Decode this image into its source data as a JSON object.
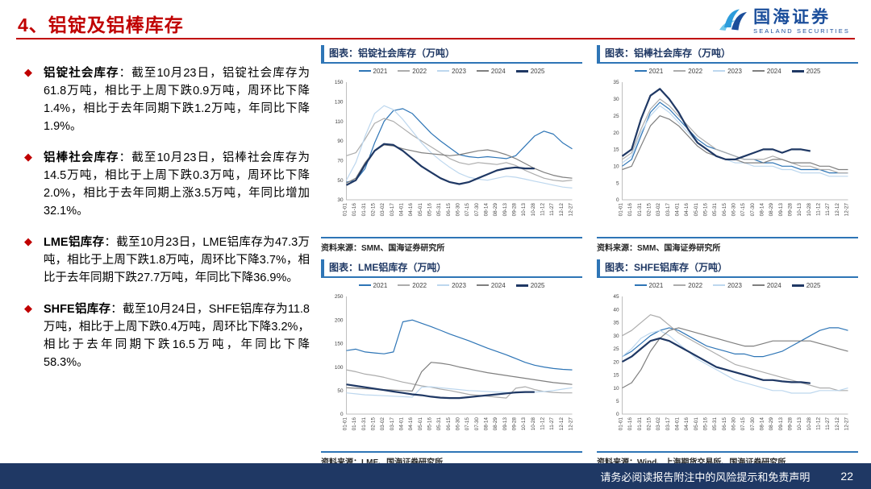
{
  "header": {
    "title": "4、铝锭及铝棒库存",
    "logo_cn": "国海证券",
    "logo_en": "SEALAND SECURITIES"
  },
  "bullets": [
    {
      "term": "铝锭社会库存",
      "text": "：截至10月23日，铝锭社会库存为61.8万吨，相比于上周下跌0.9万吨，周环比下降1.4%，相比于去年同期下跌1.2万吨，年同比下降1.9%。"
    },
    {
      "term": "铝棒社会库存",
      "text": "：截至10月23日，铝棒社会库存为14.5万吨，相比于上周下跌0.3万吨，周环比下降2.0%，相比于去年同期上涨3.5万吨，年同比增加32.1%。"
    },
    {
      "term": "LME铝库存",
      "text": "：截至10月23日，LME铝库存为47.3万吨，相比于上周下跌1.8万吨，周环比下降3.7%，相比于去年同期下跌27.7万吨，年同比下降36.9%。"
    },
    {
      "term": "SHFE铝库存",
      "text": "：截至10月24日，SHFE铝库存为11.8万吨，相比于上周下跌0.4万吨，周环比下降3.2%，相比于去年同期下跌16.5万吨，年同比下降58.3%。"
    }
  ],
  "footer": {
    "disclaimer": "请务必阅读报告附注中的风险提示和免责声明",
    "page": "22"
  },
  "colors": {
    "accent_red": "#c00000",
    "accent_blue": "#2e75b6",
    "navy": "#1f3864"
  },
  "chart_data": [
    {
      "type": "line",
      "title": "图表：铝锭社会库存（万吨）",
      "source": "资料来源：SMM、国海证券研究所",
      "ylim": [
        30,
        150
      ],
      "yticks": [
        30,
        50,
        70,
        90,
        110,
        130,
        150
      ],
      "legend_position": "top",
      "grid": false,
      "x": [
        "01-01",
        "01-16",
        "01-31",
        "02-15",
        "03-02",
        "03-17",
        "04-01",
        "04-16",
        "05-01",
        "05-16",
        "05-31",
        "06-15",
        "06-30",
        "07-15",
        "07-30",
        "08-14",
        "08-29",
        "09-13",
        "09-28",
        "10-13",
        "10-28",
        "11-12",
        "11-27",
        "12-12",
        "12-27"
      ],
      "series": [
        {
          "name": "2021",
          "color": "#2e75b6",
          "values": [
            48,
            50,
            62,
            88,
            110,
            121,
            123,
            118,
            108,
            98,
            90,
            83,
            76,
            74,
            73,
            74,
            73,
            72,
            75,
            85,
            95,
            100,
            97,
            88,
            82
          ]
        },
        {
          "name": "2022",
          "color": "#acacac",
          "values": [
            75,
            78,
            92,
            108,
            113,
            110,
            103,
            96,
            90,
            84,
            78,
            72,
            68,
            66,
            68,
            67,
            66,
            68,
            65,
            60,
            56,
            52,
            50,
            49,
            50
          ]
        },
        {
          "name": "2023",
          "color": "#bdd7ee",
          "values": [
            50,
            68,
            95,
            118,
            126,
            122,
            112,
            100,
            88,
            78,
            70,
            63,
            57,
            53,
            51,
            50,
            52,
            54,
            53,
            51,
            49,
            47,
            45,
            43,
            42
          ]
        },
        {
          "name": "2024",
          "color": "#7f7f7f",
          "values": [
            47,
            52,
            68,
            80,
            86,
            85,
            82,
            80,
            78,
            77,
            76,
            75,
            76,
            78,
            80,
            81,
            79,
            76,
            72,
            67,
            62,
            58,
            55,
            53,
            52
          ]
        },
        {
          "name": "2025",
          "color": "#1f3864",
          "values": [
            45,
            50,
            66,
            80,
            87,
            86,
            80,
            72,
            64,
            58,
            52,
            48,
            46,
            48,
            52,
            56,
            60,
            62,
            63,
            62,
            62
          ]
        }
      ]
    },
    {
      "type": "line",
      "title": "图表：铝棒社会库存（万吨）",
      "source": "资料来源：SMM、国海证券研究所",
      "ylim": [
        0,
        35
      ],
      "yticks": [
        0,
        5,
        10,
        15,
        20,
        25,
        30,
        35
      ],
      "legend_position": "top",
      "grid": false,
      "x": [
        "01-01",
        "01-16",
        "01-31",
        "02-15",
        "03-02",
        "03-17",
        "04-01",
        "04-16",
        "05-01",
        "05-16",
        "05-31",
        "06-15",
        "06-30",
        "07-15",
        "07-30",
        "08-14",
        "08-29",
        "09-13",
        "09-28",
        "10-13",
        "10-28",
        "11-12",
        "11-27",
        "12-12",
        "12-27"
      ],
      "series": [
        {
          "name": "2021",
          "color": "#2e75b6",
          "values": [
            10,
            12,
            19,
            26,
            29,
            27,
            24,
            21,
            18,
            16,
            15,
            14,
            13,
            12,
            12,
            11,
            11,
            10,
            10,
            9,
            9,
            9,
            8,
            8,
            8
          ]
        },
        {
          "name": "2022",
          "color": "#acacac",
          "values": [
            12,
            14,
            21,
            27,
            30,
            28,
            25,
            22,
            19,
            17,
            15,
            14,
            13,
            12,
            12,
            12,
            13,
            12,
            11,
            10,
            10,
            9,
            9,
            8,
            8
          ]
        },
        {
          "name": "2023",
          "color": "#bdd7ee",
          "values": [
            11,
            13,
            20,
            25,
            28,
            26,
            23,
            20,
            17,
            15,
            13,
            12,
            11,
            11,
            10,
            10,
            10,
            9,
            9,
            8,
            8,
            8,
            7,
            7,
            7
          ]
        },
        {
          "name": "2024",
          "color": "#7f7f7f",
          "values": [
            9,
            10,
            16,
            22,
            25,
            24,
            22,
            19,
            16,
            14,
            13,
            12,
            12,
            11,
            11,
            11,
            12,
            12,
            11,
            11,
            11,
            10,
            10,
            9,
            9
          ]
        },
        {
          "name": "2025",
          "color": "#1f3864",
          "values": [
            13,
            15,
            24,
            31,
            33,
            30,
            26,
            21,
            17,
            15,
            13,
            12,
            12,
            13,
            14,
            15,
            15,
            14,
            15,
            15,
            14.5
          ]
        }
      ]
    },
    {
      "type": "line",
      "title": "图表：LME铝库存（万吨）",
      "source": "资料来源：LME、国海证券研究所",
      "ylim": [
        0,
        250
      ],
      "yticks": [
        0,
        50,
        100,
        150,
        200,
        250
      ],
      "legend_position": "top",
      "grid": false,
      "x": [
        "01-01",
        "01-16",
        "01-31",
        "02-15",
        "03-02",
        "03-17",
        "04-01",
        "04-16",
        "05-01",
        "05-16",
        "05-31",
        "06-15",
        "06-30",
        "07-15",
        "07-30",
        "08-14",
        "08-29",
        "09-13",
        "09-28",
        "10-13",
        "10-28",
        "11-12",
        "11-27",
        "12-12",
        "12-27"
      ],
      "series": [
        {
          "name": "2021",
          "color": "#2e75b6",
          "values": [
            135,
            138,
            132,
            130,
            128,
            132,
            196,
            200,
            193,
            186,
            178,
            170,
            163,
            156,
            148,
            140,
            133,
            126,
            118,
            110,
            104,
            100,
            97,
            95,
            94
          ]
        },
        {
          "name": "2022",
          "color": "#acacac",
          "values": [
            94,
            90,
            85,
            82,
            78,
            73,
            68,
            64,
            60,
            57,
            53,
            50,
            46,
            42,
            40,
            38,
            36,
            34,
            55,
            58,
            52,
            48,
            46,
            45,
            45
          ]
        },
        {
          "name": "2023",
          "color": "#bdd7ee",
          "values": [
            45,
            43,
            41,
            40,
            39,
            38,
            37,
            36,
            57,
            58,
            56,
            54,
            52,
            50,
            49,
            48,
            47,
            46,
            45,
            46,
            47,
            48,
            50,
            53,
            56
          ]
        },
        {
          "name": "2024",
          "color": "#7f7f7f",
          "values": [
            56,
            55,
            54,
            53,
            52,
            51,
            50,
            49,
            90,
            110,
            108,
            105,
            100,
            96,
            92,
            88,
            85,
            82,
            79,
            76,
            73,
            70,
            67,
            65,
            63
          ]
        },
        {
          "name": "2025",
          "color": "#1f3864",
          "values": [
            63,
            60,
            57,
            54,
            51,
            48,
            45,
            42,
            40,
            37,
            35,
            34,
            34,
            36,
            38,
            40,
            42,
            44,
            46,
            47,
            47
          ]
        }
      ]
    },
    {
      "type": "line",
      "title": "图表：SHFE铝库存（万吨）",
      "source": "资料来源：Wind、上海期货交易所、国海证券研究所",
      "ylim": [
        0,
        45
      ],
      "yticks": [
        0,
        5,
        10,
        15,
        20,
        25,
        30,
        35,
        40,
        45
      ],
      "legend_position": "top",
      "grid": false,
      "x": [
        "01-01",
        "01-16",
        "01-31",
        "02-15",
        "03-02",
        "03-17",
        "04-01",
        "04-16",
        "05-01",
        "05-16",
        "05-31",
        "06-15",
        "06-30",
        "07-15",
        "07-30",
        "08-14",
        "08-29",
        "09-13",
        "09-28",
        "10-13",
        "10-28",
        "11-12",
        "11-27",
        "12-12",
        "12-27"
      ],
      "series": [
        {
          "name": "2021",
          "color": "#2e75b6",
          "values": [
            22,
            24,
            27,
            30,
            32,
            33,
            32,
            30,
            28,
            26,
            25,
            24,
            23,
            23,
            22,
            22,
            23,
            24,
            26,
            28,
            30,
            32,
            33,
            33,
            32
          ]
        },
        {
          "name": "2022",
          "color": "#acacac",
          "values": [
            30,
            32,
            35,
            38,
            37,
            34,
            31,
            29,
            27,
            25,
            23,
            21,
            19,
            18,
            17,
            16,
            15,
            14,
            13,
            12,
            11,
            10,
            10,
            9,
            9
          ]
        },
        {
          "name": "2023",
          "color": "#bdd7ee",
          "values": [
            22,
            25,
            29,
            31,
            32,
            30,
            27,
            24,
            21,
            19,
            17,
            15,
            13,
            12,
            11,
            10,
            9,
            9,
            8,
            8,
            8,
            9,
            9,
            9,
            10
          ]
        },
        {
          "name": "2024",
          "color": "#7f7f7f",
          "values": [
            10,
            12,
            17,
            24,
            29,
            32,
            33,
            32,
            31,
            30,
            29,
            28,
            27,
            26,
            26,
            27,
            28,
            28,
            28,
            28,
            28,
            27,
            26,
            25,
            24
          ]
        },
        {
          "name": "2025",
          "color": "#1f3864",
          "values": [
            20,
            22,
            25,
            28,
            29,
            28,
            26,
            24,
            22,
            20,
            18,
            17,
            16,
            15,
            14,
            13,
            13,
            12.5,
            12.2,
            12.2,
            11.8
          ]
        }
      ]
    }
  ]
}
